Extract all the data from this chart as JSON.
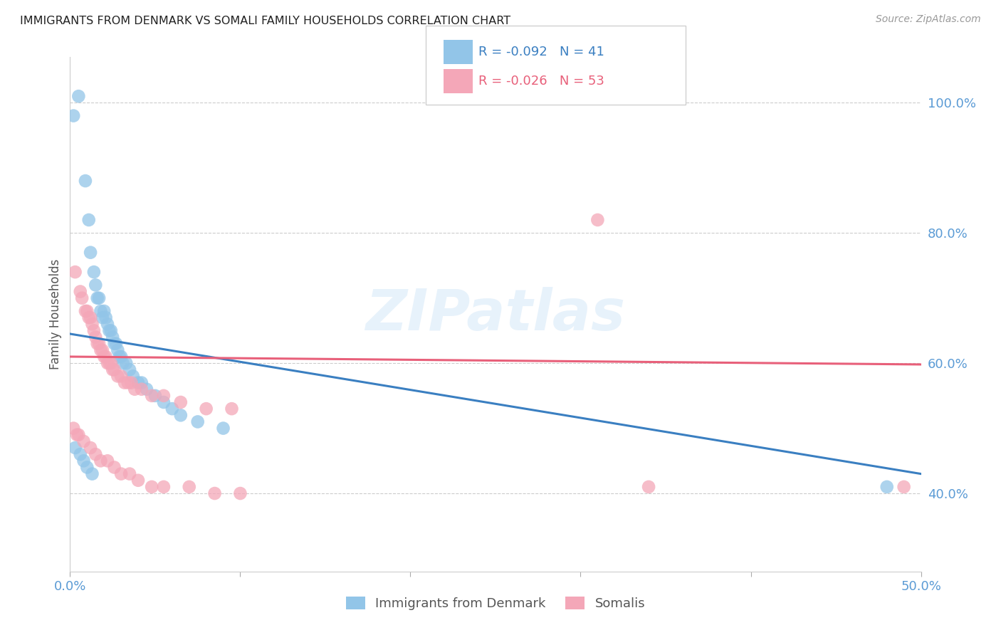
{
  "title": "IMMIGRANTS FROM DENMARK VS SOMALI FAMILY HOUSEHOLDS CORRELATION CHART",
  "source": "Source: ZipAtlas.com",
  "ylabel": "Family Households",
  "xlim": [
    0.0,
    0.5
  ],
  "ylim": [
    0.28,
    1.07
  ],
  "xticks": [
    0.0,
    0.1,
    0.2,
    0.3,
    0.4,
    0.5
  ],
  "xticklabels": [
    "0.0%",
    "",
    "",
    "",
    "",
    "50.0%"
  ],
  "yticks_right": [
    0.4,
    0.6,
    0.8,
    1.0
  ],
  "yticklabels_right": [
    "40.0%",
    "60.0%",
    "80.0%",
    "100.0%"
  ],
  "legend_r1": "-0.092",
  "legend_n1": "41",
  "legend_r2": "-0.026",
  "legend_n2": "53",
  "watermark": "ZIPatlas",
  "denmark_color": "#92c5e8",
  "somali_color": "#f4a7b8",
  "denmark_trend_color": "#3a7fc1",
  "somali_trend_color": "#e8607a",
  "background_color": "#ffffff",
  "grid_color": "#cccccc",
  "title_color": "#222222",
  "axis_color": "#5b9bd5",
  "denmark_x": [
    0.002,
    0.005,
    0.009,
    0.011,
    0.012,
    0.014,
    0.015,
    0.016,
    0.017,
    0.018,
    0.019,
    0.02,
    0.021,
    0.022,
    0.023,
    0.024,
    0.025,
    0.026,
    0.027,
    0.028,
    0.029,
    0.03,
    0.031,
    0.033,
    0.035,
    0.037,
    0.04,
    0.042,
    0.045,
    0.05,
    0.055,
    0.06,
    0.065,
    0.075,
    0.09,
    0.003,
    0.006,
    0.008,
    0.01,
    0.013,
    0.48
  ],
  "denmark_y": [
    0.98,
    1.01,
    0.88,
    0.82,
    0.77,
    0.74,
    0.72,
    0.7,
    0.7,
    0.68,
    0.67,
    0.68,
    0.67,
    0.66,
    0.65,
    0.65,
    0.64,
    0.63,
    0.63,
    0.62,
    0.61,
    0.61,
    0.6,
    0.6,
    0.59,
    0.58,
    0.57,
    0.57,
    0.56,
    0.55,
    0.54,
    0.53,
    0.52,
    0.51,
    0.5,
    0.47,
    0.46,
    0.45,
    0.44,
    0.43,
    0.41
  ],
  "somali_x": [
    0.003,
    0.006,
    0.007,
    0.009,
    0.01,
    0.011,
    0.012,
    0.013,
    0.014,
    0.015,
    0.016,
    0.017,
    0.018,
    0.019,
    0.02,
    0.021,
    0.022,
    0.023,
    0.024,
    0.025,
    0.026,
    0.028,
    0.03,
    0.032,
    0.034,
    0.036,
    0.038,
    0.042,
    0.048,
    0.055,
    0.065,
    0.08,
    0.095,
    0.002,
    0.004,
    0.005,
    0.008,
    0.012,
    0.015,
    0.018,
    0.022,
    0.026,
    0.03,
    0.035,
    0.04,
    0.048,
    0.055,
    0.07,
    0.085,
    0.1,
    0.31,
    0.34,
    0.49
  ],
  "somali_y": [
    0.74,
    0.71,
    0.7,
    0.68,
    0.68,
    0.67,
    0.67,
    0.66,
    0.65,
    0.64,
    0.63,
    0.63,
    0.62,
    0.62,
    0.61,
    0.61,
    0.6,
    0.6,
    0.6,
    0.59,
    0.59,
    0.58,
    0.58,
    0.57,
    0.57,
    0.57,
    0.56,
    0.56,
    0.55,
    0.55,
    0.54,
    0.53,
    0.53,
    0.5,
    0.49,
    0.49,
    0.48,
    0.47,
    0.46,
    0.45,
    0.45,
    0.44,
    0.43,
    0.43,
    0.42,
    0.41,
    0.41,
    0.41,
    0.4,
    0.4,
    0.82,
    0.41,
    0.41
  ],
  "denmark_trendline_x": [
    0.0,
    0.5
  ],
  "denmark_trendline_y": [
    0.645,
    0.43
  ],
  "somali_trendline_x": [
    0.0,
    0.5
  ],
  "somali_trendline_y": [
    0.61,
    0.598
  ]
}
